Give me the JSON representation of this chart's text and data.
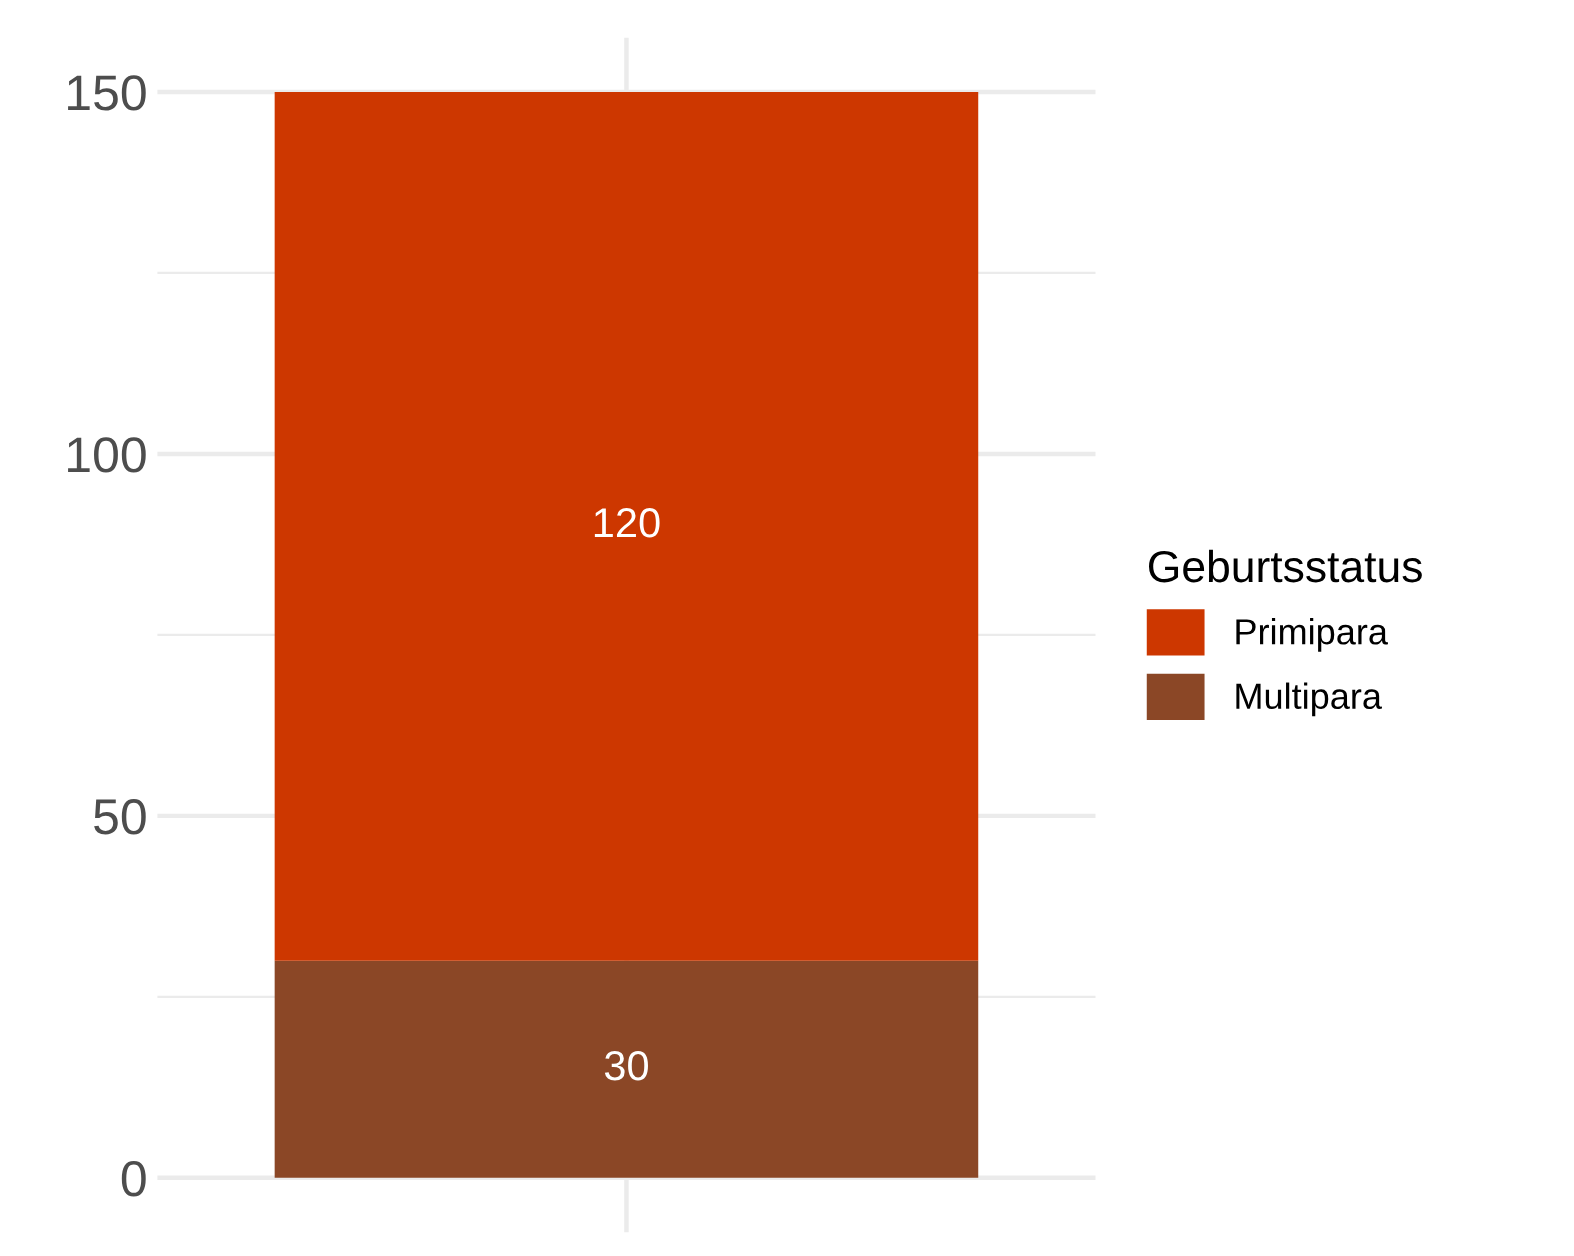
{
  "chart_data": {
    "type": "bar",
    "stacked": true,
    "categories": [
      null
    ],
    "series": [
      {
        "name": "Multipara",
        "color": "#8b4726",
        "values": [
          30
        ]
      },
      {
        "name": "Primipara",
        "color": "#cd3700",
        "values": [
          120
        ]
      }
    ],
    "legend_title": "Geburtsstatus",
    "legend": "right",
    "data_labels": true,
    "grid": true,
    "ylim": [
      -7.5,
      157.5
    ],
    "yticks": [
      0,
      {
        "value": 25,
        "label": null
      },
      50,
      {
        "value": 75,
        "label": null
      },
      100,
      {
        "value": 125,
        "label": null
      },
      150
    ]
  }
}
